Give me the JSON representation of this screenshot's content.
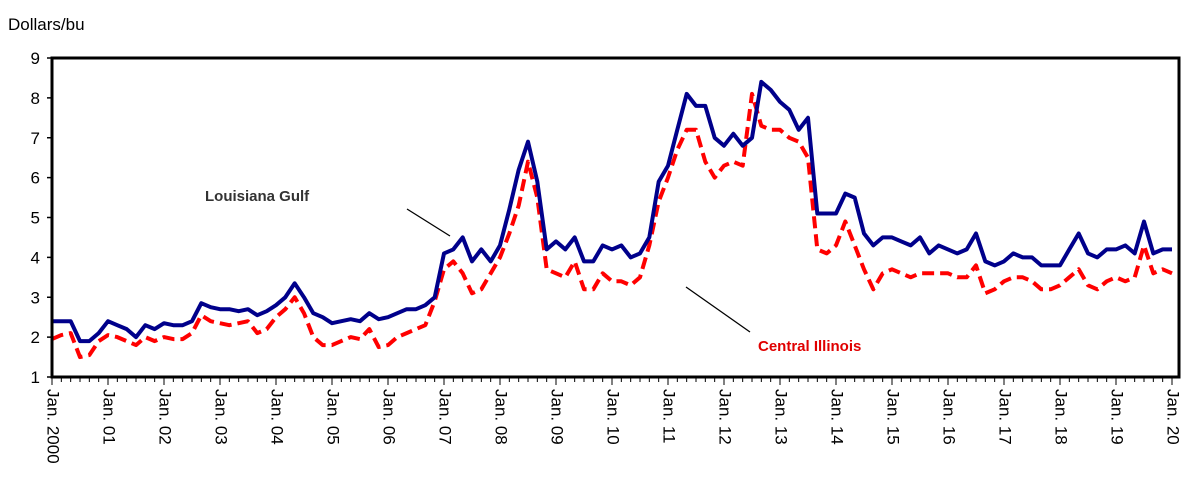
{
  "chart_data": {
    "type": "line",
    "y_label": "Dollars/bu",
    "categories": [
      "Jan. 2000",
      null,
      null,
      null,
      null,
      null,
      "Jan. 01",
      null,
      null,
      null,
      null,
      null,
      "Jan. 02",
      null,
      null,
      null,
      null,
      null,
      "Jan. 03",
      null,
      null,
      null,
      null,
      null,
      "Jan. 04",
      null,
      null,
      null,
      null,
      null,
      "Jan. 05",
      null,
      null,
      null,
      null,
      null,
      "Jan. 06",
      null,
      null,
      null,
      null,
      null,
      "Jan. 07",
      null,
      null,
      null,
      null,
      null,
      "Jan. 08",
      null,
      null,
      null,
      null,
      null,
      "Jan. 09",
      null,
      null,
      null,
      null,
      null,
      "Jan. 10",
      null,
      null,
      null,
      null,
      null,
      "Jan. 11",
      null,
      null,
      null,
      null,
      null,
      "Jan. 12",
      null,
      null,
      null,
      null,
      null,
      "Jan. 13",
      null,
      null,
      null,
      null,
      null,
      "Jan. 14",
      null,
      null,
      null,
      null,
      null,
      "Jan. 15",
      null,
      null,
      null,
      null,
      null,
      "Jan. 16",
      null,
      null,
      null,
      null,
      null,
      "Jan. 17",
      null,
      null,
      null,
      null,
      null,
      "Jan. 18",
      null,
      null,
      null,
      null,
      null,
      "Jan. 19",
      null,
      null,
      null,
      null,
      null,
      "Jan. 20"
    ],
    "series": [
      {
        "name": "Louisiana Gulf",
        "color": "#00008b",
        "dashed": false,
        "values": [
          2.4,
          2.4,
          2.4,
          1.9,
          1.9,
          2.1,
          2.4,
          2.3,
          2.2,
          2.0,
          2.3,
          2.2,
          2.35,
          2.3,
          2.3,
          2.4,
          2.85,
          2.75,
          2.7,
          2.7,
          2.65,
          2.7,
          2.55,
          2.65,
          2.8,
          3.0,
          3.35,
          3.0,
          2.6,
          2.5,
          2.35,
          2.4,
          2.45,
          2.4,
          2.6,
          2.45,
          2.5,
          2.6,
          2.7,
          2.7,
          2.8,
          3.0,
          4.1,
          4.2,
          4.5,
          3.9,
          4.2,
          3.9,
          4.3,
          5.2,
          6.2,
          6.9,
          5.9,
          4.2,
          4.4,
          4.2,
          4.5,
          3.9,
          3.9,
          4.3,
          4.2,
          4.3,
          4.0,
          4.1,
          4.5,
          5.9,
          6.3,
          7.2,
          8.1,
          7.8,
          7.8,
          7.0,
          6.8,
          7.1,
          6.8,
          7.0,
          8.4,
          8.2,
          7.9,
          7.7,
          7.2,
          7.5,
          5.1,
          5.1,
          5.1,
          5.6,
          5.5,
          4.6,
          4.3,
          4.5,
          4.5,
          4.4,
          4.3,
          4.5,
          4.1,
          4.3,
          4.2,
          4.1,
          4.2,
          4.6,
          3.9,
          3.8,
          3.9,
          4.1,
          4.0,
          4.0,
          3.8,
          3.8,
          3.8,
          4.2,
          4.6,
          4.1,
          4.0,
          4.2,
          4.2,
          4.3,
          4.1,
          4.9,
          4.1,
          4.2,
          4.2
        ]
      },
      {
        "name": "Central Illinois",
        "color": "#ff0000",
        "dashed": true,
        "values": [
          1.95,
          2.05,
          2.1,
          1.5,
          1.55,
          1.9,
          2.05,
          2.0,
          1.9,
          1.8,
          2.0,
          1.9,
          2.0,
          1.95,
          1.95,
          2.1,
          2.55,
          2.4,
          2.35,
          2.3,
          2.35,
          2.4,
          2.1,
          2.2,
          2.5,
          2.7,
          3.0,
          2.6,
          2.0,
          1.8,
          1.8,
          1.9,
          2.0,
          1.95,
          2.2,
          1.75,
          1.8,
          2.0,
          2.1,
          2.2,
          2.3,
          2.9,
          3.7,
          3.9,
          3.6,
          3.1,
          3.2,
          3.6,
          4.0,
          4.6,
          5.3,
          6.4,
          5.5,
          3.7,
          3.6,
          3.5,
          3.9,
          3.2,
          3.2,
          3.6,
          3.4,
          3.4,
          3.3,
          3.5,
          4.3,
          5.4,
          6.0,
          6.7,
          7.2,
          7.2,
          6.4,
          6.0,
          6.3,
          6.4,
          6.3,
          8.1,
          7.3,
          7.2,
          7.2,
          7.0,
          6.9,
          6.5,
          4.2,
          4.1,
          4.3,
          4.9,
          4.3,
          3.7,
          3.2,
          3.6,
          3.7,
          3.6,
          3.5,
          3.6,
          3.6,
          3.6,
          3.6,
          3.5,
          3.5,
          3.8,
          3.1,
          3.2,
          3.4,
          3.5,
          3.5,
          3.4,
          3.2,
          3.2,
          3.3,
          3.5,
          3.7,
          3.3,
          3.2,
          3.4,
          3.5,
          3.4,
          3.5,
          4.3,
          3.6,
          3.7,
          3.6
        ]
      }
    ],
    "ylim": [
      1,
      9
    ],
    "yticks": [
      1,
      2,
      3,
      4,
      5,
      6,
      7,
      8,
      9
    ],
    "grid": false
  }
}
